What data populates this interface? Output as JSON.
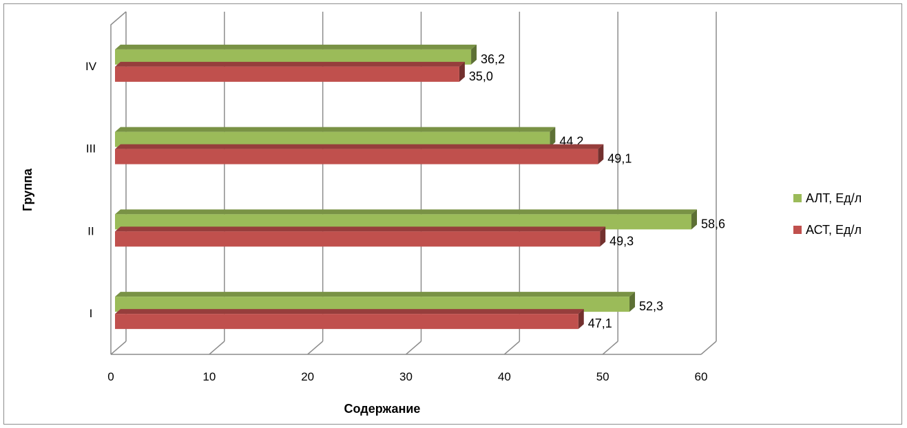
{
  "chart_data": {
    "type": "bar",
    "orientation": "horizontal",
    "categories": [
      "I",
      "II",
      "III",
      "IV"
    ],
    "series": [
      {
        "name": "АЛТ, Ед/л",
        "values": [
          52.3,
          58.6,
          44.2,
          36.2
        ],
        "labels": [
          "52,3",
          "58,6",
          "44,2",
          "36,2"
        ],
        "color": "#9BBB59"
      },
      {
        "name": "АСТ, Ед/л",
        "values": [
          47.1,
          49.3,
          49.1,
          35.0
        ],
        "labels": [
          "47,1",
          "49,3",
          "49,1",
          "35,0"
        ],
        "color": "#C0504D"
      }
    ],
    "xlabel": "Содержание",
    "ylabel": "Группа",
    "xlim": [
      0,
      60
    ],
    "xticks": [
      "0",
      "10",
      "20",
      "30",
      "40",
      "50",
      "60"
    ],
    "grid": true,
    "legend_position": "right"
  },
  "legend": {
    "alt_label": "АЛТ, Ед/л",
    "ast_label": "АСТ, Ед/л",
    "alt_color": "#9BBB59",
    "ast_color": "#C0504D"
  }
}
